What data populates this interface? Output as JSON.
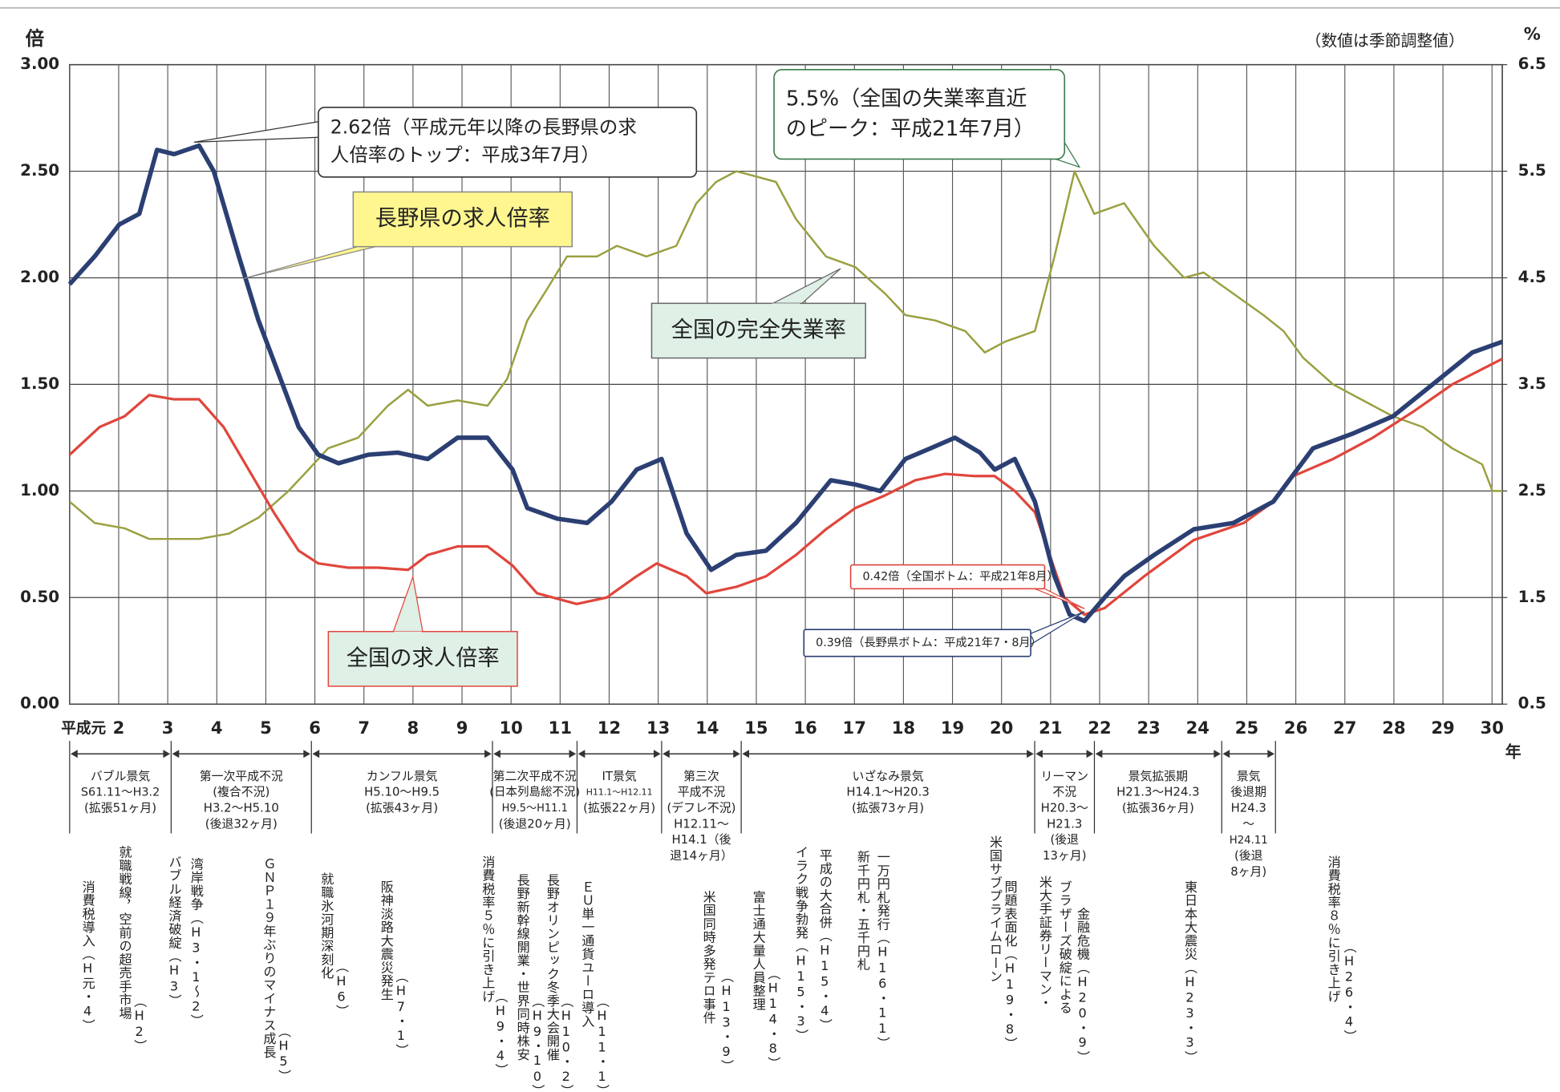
{
  "chart_data": {
    "type": "line",
    "y_label": "倍",
    "y2_label": "%",
    "x_label": "年",
    "note": "（数値は季節調整値）",
    "xlim": [
      1,
      30.21
    ],
    "xticks": [
      {
        "value": 1,
        "label": "平成元"
      },
      2,
      3,
      4,
      5,
      6,
      7,
      8,
      9,
      10,
      11,
      12,
      13,
      14,
      15,
      16,
      17,
      18,
      19,
      20,
      21,
      22,
      23,
      24,
      25,
      26,
      27,
      28,
      29,
      30
    ],
    "ylim": [
      0,
      3
    ],
    "yticks": [
      {
        "value": 0,
        "label": "0.00"
      },
      {
        "value": 0.5,
        "label": "0.50"
      },
      {
        "value": 1,
        "label": "1.00"
      },
      {
        "value": 1.5,
        "label": "1.50"
      },
      {
        "value": 2,
        "label": "2.00"
      },
      {
        "value": 2.5,
        "label": "2.50"
      },
      {
        "value": 3,
        "label": "3.00"
      }
    ],
    "y2lim": [
      0.5,
      6.5
    ],
    "y2ticks": [
      0.5,
      1.5,
      2.5,
      3.5,
      4.5,
      5.5,
      6.5
    ],
    "grid": true,
    "series": [
      {
        "name": "長野県の求人倍率",
        "color": "#2b3f73",
        "x": [
          1.0,
          1.51,
          2.01,
          2.42,
          2.78,
          3.13,
          3.64,
          3.94,
          4.45,
          4.85,
          5.26,
          5.67,
          6.07,
          6.48,
          7.09,
          7.69,
          8.3,
          8.91,
          9.52,
          10.03,
          10.33,
          10.94,
          11.55,
          12.05,
          12.56,
          13.07,
          13.58,
          14.08,
          14.59,
          15.2,
          15.81,
          16.52,
          17.02,
          17.53,
          18.04,
          18.55,
          19.05,
          19.56,
          19.86,
          20.27,
          20.68,
          21.08,
          21.39,
          21.69,
          22.1,
          22.5,
          23.11,
          23.92,
          24.73,
          25.54,
          26.35,
          27.17,
          27.98,
          28.79,
          29.6,
          30.21
        ],
        "values": [
          1.97,
          2.1,
          2.25,
          2.3,
          2.6,
          2.58,
          2.62,
          2.5,
          2.1,
          1.8,
          1.55,
          1.3,
          1.17,
          1.13,
          1.17,
          1.18,
          1.15,
          1.25,
          1.25,
          1.1,
          0.92,
          0.87,
          0.85,
          0.95,
          1.1,
          1.15,
          0.8,
          0.63,
          0.7,
          0.72,
          0.85,
          1.05,
          1.03,
          1.0,
          1.15,
          1.2,
          1.25,
          1.18,
          1.1,
          1.15,
          0.95,
          0.6,
          0.42,
          0.39,
          0.5,
          0.6,
          0.7,
          0.82,
          0.85,
          0.95,
          1.2,
          1.27,
          1.35,
          1.5,
          1.65,
          1.7
        ]
      },
      {
        "name": "全国の求人倍率",
        "color": "#e0463c",
        "x": [
          1.0,
          1.61,
          2.12,
          2.62,
          3.13,
          3.64,
          4.14,
          4.65,
          5.16,
          5.67,
          6.07,
          6.68,
          7.29,
          7.9,
          8.3,
          8.91,
          9.52,
          10.03,
          10.53,
          11.34,
          11.95,
          12.56,
          12.97,
          13.58,
          13.98,
          14.59,
          15.2,
          15.81,
          16.42,
          17.02,
          17.63,
          18.24,
          18.85,
          19.46,
          19.86,
          20.27,
          20.68,
          20.98,
          21.28,
          21.69,
          22.1,
          22.91,
          23.92,
          24.94,
          25.54,
          25.95,
          26.76,
          27.57,
          28.38,
          29.19,
          30.21
        ],
        "values": [
          1.17,
          1.3,
          1.35,
          1.45,
          1.43,
          1.43,
          1.3,
          1.1,
          0.9,
          0.72,
          0.66,
          0.64,
          0.64,
          0.63,
          0.7,
          0.74,
          0.74,
          0.65,
          0.52,
          0.47,
          0.5,
          0.6,
          0.66,
          0.6,
          0.52,
          0.55,
          0.6,
          0.7,
          0.82,
          0.92,
          0.98,
          1.05,
          1.08,
          1.07,
          1.07,
          1.0,
          0.9,
          0.7,
          0.5,
          0.42,
          0.45,
          0.6,
          0.77,
          0.85,
          0.95,
          1.07,
          1.15,
          1.25,
          1.37,
          1.5,
          1.62
        ]
      },
      {
        "name": "全国の完全失業率",
        "color": "#9aa040",
        "axis": "y2",
        "x": [
          1.0,
          1.51,
          2.12,
          2.62,
          3.13,
          3.64,
          4.25,
          4.85,
          5.46,
          5.87,
          6.27,
          6.88,
          7.49,
          7.9,
          8.3,
          8.91,
          9.52,
          9.92,
          10.33,
          10.74,
          11.14,
          11.75,
          12.16,
          12.76,
          13.37,
          13.78,
          14.18,
          14.59,
          15.0,
          15.4,
          15.81,
          16.42,
          17.02,
          17.63,
          18.04,
          18.65,
          19.26,
          19.66,
          20.07,
          20.68,
          21.08,
          21.49,
          21.89,
          22.5,
          23.11,
          23.72,
          24.12,
          24.73,
          25.34,
          25.75,
          26.15,
          26.76,
          27.37,
          27.98,
          28.59,
          29.19,
          29.8,
          30.01,
          30.21
        ],
        "values": [
          2.4,
          2.2,
          2.15,
          2.05,
          2.05,
          2.05,
          2.1,
          2.25,
          2.5,
          2.7,
          2.9,
          3.0,
          3.3,
          3.45,
          3.3,
          3.35,
          3.3,
          3.55,
          4.1,
          4.4,
          4.7,
          4.7,
          4.8,
          4.7,
          4.8,
          5.2,
          5.4,
          5.5,
          5.45,
          5.4,
          5.05,
          4.7,
          4.6,
          4.35,
          4.15,
          4.1,
          4.0,
          3.8,
          3.9,
          4.0,
          4.7,
          5.5,
          5.1,
          5.2,
          4.8,
          4.5,
          4.55,
          4.35,
          4.15,
          4.0,
          3.75,
          3.5,
          3.35,
          3.2,
          3.1,
          2.9,
          2.75,
          2.5,
          2.5
        ]
      }
    ],
    "annotations": [
      {
        "text": [
          "2.62倍（平成元年以降の長野県の求",
          "人倍率のトップ：平成3年7月）"
        ]
      },
      {
        "text": [
          "5.5%（全国の失業率直近",
          "のピーク：平成21年7月）"
        ]
      },
      {
        "text": [
          "0.42倍（全国ボトム：平成21年8月）"
        ]
      },
      {
        "text": [
          "0.39倍（長野県ボトム：平成21年7・8月）"
        ]
      }
    ],
    "periods": [
      [
        "バブル景気",
        "S61.11～H3.2",
        "(拡張51ヶ月)"
      ],
      [
        "第一次平成不況",
        "(複合不況)",
        "H3.2～H5.10",
        "(後退32ヶ月)"
      ],
      [
        "カンフル景気",
        "H5.10～H9.5",
        "(拡張43ヶ月)"
      ],
      [
        "第二次平成不況",
        "(日本列島総不況)",
        "H9.5～H11.1",
        "(後退20ヶ月)"
      ],
      [
        "IT景気",
        "H11.1～H12.11",
        "(拡張22ヶ月)"
      ],
      [
        "第三次",
        "平成不況",
        "(デフレ不況)",
        "H12.11～",
        "H14.1（後",
        "退14ヶ月）"
      ],
      [
        "いざなみ景気",
        "H14.1～H20.3",
        "(拡張73ヶ月)"
      ],
      [
        "リーマン",
        "不況",
        "H20.3～",
        "H21.3",
        "(後退",
        "13ヶ月)"
      ],
      [
        "景気拡張期",
        "H21.3～H24.3",
        "(拡張36ヶ月)"
      ],
      [
        "景気",
        "後退期",
        "H24.3",
        "～",
        "H24.11",
        "(後退",
        "8ヶ月)"
      ]
    ],
    "events": [
      [
        "消費税導入（H元・4）"
      ],
      [
        "就職戦線，空前の超売手市場",
        "（H2）"
      ],
      [
        "バブル経済破綻（H3）"
      ],
      [
        "湾岸戦争（H3・1～2）"
      ],
      [
        "ＧＮＰ１９年ぶりのマイナス成長",
        "（H5）"
      ],
      [
        "就職氷河期深刻化",
        "（H6）"
      ],
      [
        "阪神淡路大震災発生",
        "（H7・1）"
      ],
      [
        "消費税率５％に引き上げ",
        "（H9・4）"
      ],
      [
        "長野新幹線開業・世界同時株安",
        "（H9・10）"
      ],
      [
        "長野オリンピック冬季大会開催",
        "（H10・2）"
      ],
      [
        "ＥＵ単一通貨ユーロ導入",
        "（H11・1）"
      ],
      [
        "米国同時多発テロ事件",
        "（H13・9）"
      ],
      [
        "富士通大量人員整理",
        "（H14・8）"
      ],
      [
        "イラク戦争勃発（H15・3）"
      ],
      [
        "平成の大合併（H15・4）"
      ],
      [
        "新千円札・五千円札"
      ],
      [
        "一万円札発行（H16・11）"
      ],
      [
        "米国サブプライムローン",
        "問題表面化（H19・8）"
      ],
      [
        "米大手証券リーマン・",
        "ブラザーズ破綻による",
        "金融危機（H20・9）"
      ],
      [
        "東日本大震災（H23・3）"
      ],
      [
        "消費税率８％に引き上げ",
        "（H26・4）"
      ]
    ]
  }
}
